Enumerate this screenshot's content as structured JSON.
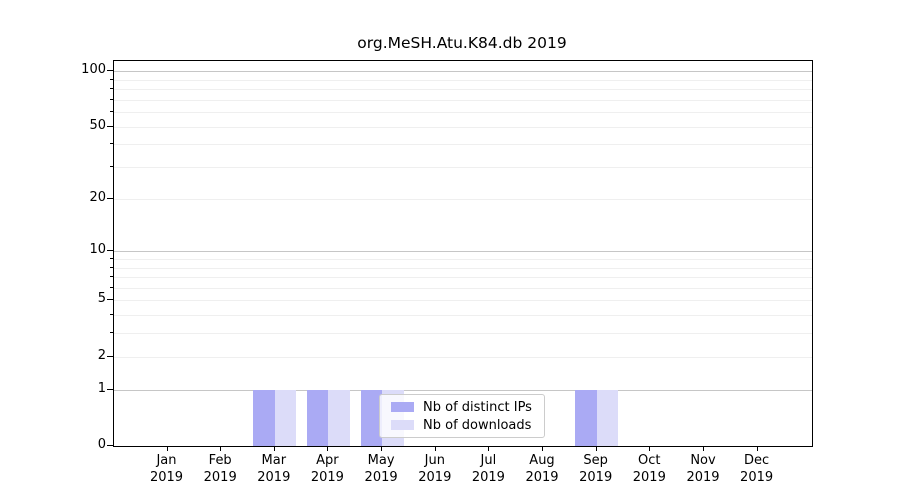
{
  "title": "org.MeSH.Atu.K84.db 2019",
  "legend": {
    "items": [
      {
        "label": "Nb of distinct IPs",
        "color": "#aaaaf4"
      },
      {
        "label": "Nb of downloads",
        "color": "#dcdcf9"
      }
    ]
  },
  "chart_data": {
    "type": "bar",
    "title": "org.MeSH.Atu.K84.db 2019",
    "categories": [
      "Jan",
      "Feb",
      "Mar",
      "Apr",
      "May",
      "Jun",
      "Jul",
      "Aug",
      "Sep",
      "Oct",
      "Nov",
      "Dec"
    ],
    "category_year": "2019",
    "series": [
      {
        "name": "Nb of distinct IPs",
        "color": "#aaaaf4",
        "values": [
          0,
          0,
          1,
          1,
          1,
          0,
          0,
          0,
          1,
          0,
          0,
          0
        ]
      },
      {
        "name": "Nb of downloads",
        "color": "#dcdcf9",
        "values": [
          0,
          0,
          1,
          1,
          1,
          0,
          0,
          0,
          1,
          0,
          0,
          0
        ]
      }
    ],
    "xlabel": "",
    "ylabel": "",
    "y_scale": "log1p",
    "y_ticks_labeled": [
      0,
      1,
      2,
      5,
      10,
      20,
      50,
      100
    ],
    "y_gridlines_major": [
      1,
      10,
      100
    ],
    "y_gridlines_minor": [
      2,
      3,
      4,
      5,
      6,
      7,
      8,
      9,
      20,
      30,
      40,
      50,
      60,
      70,
      80,
      90
    ],
    "ylim": [
      0,
      113
    ],
    "grid": "horizontal",
    "legend_position": "lower center"
  }
}
